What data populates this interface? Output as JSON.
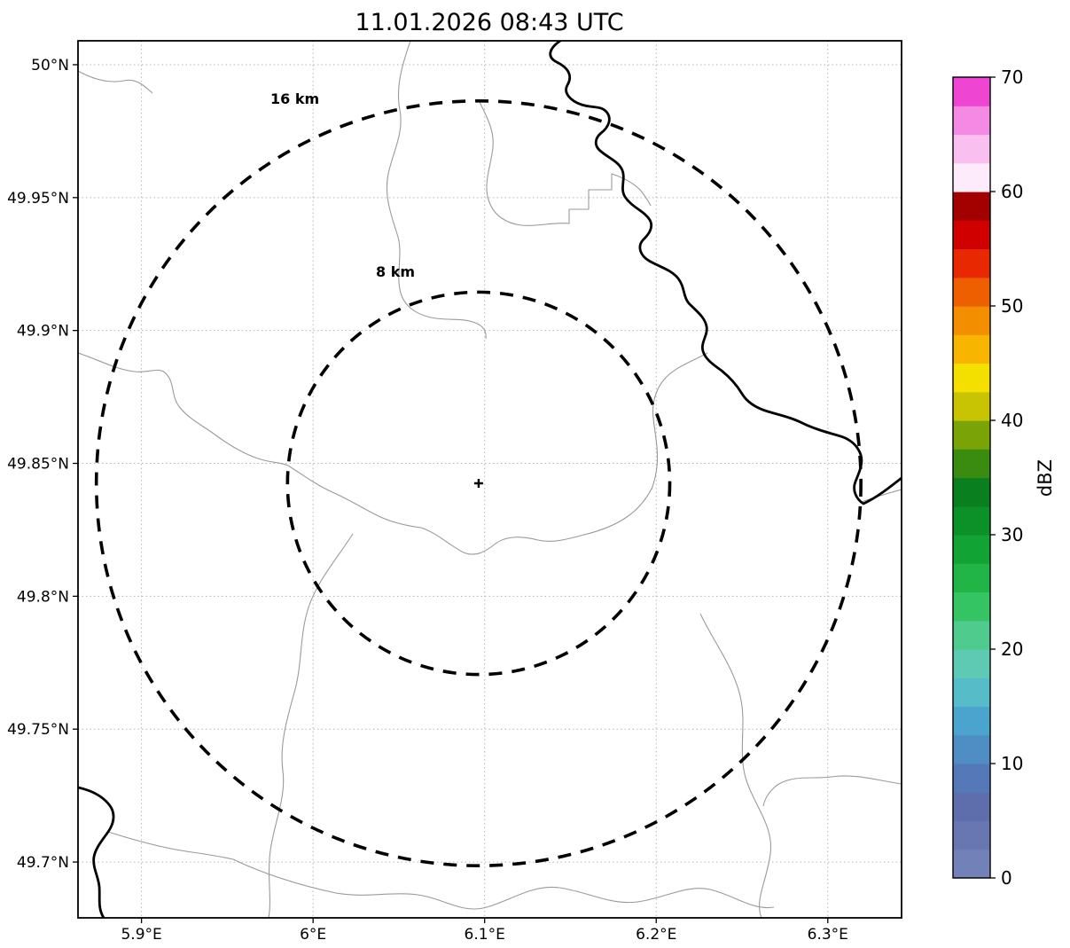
{
  "chart_data": {
    "type": "map",
    "subtype": "weather-radar-range-map",
    "title": "11.01.2026 08:43 UTC",
    "x_axis": {
      "tick_labels": [
        "5.9°E",
        "6°E",
        "6.1°E",
        "6.2°E",
        "6.3°E"
      ],
      "tick_values": [
        5.9,
        6.0,
        6.1,
        6.2,
        6.3
      ],
      "range": [
        5.863,
        6.343
      ],
      "unit": "degrees east",
      "grid": true,
      "grid_style": "dotted"
    },
    "y_axis": {
      "tick_labels": [
        "50°N",
        "49.95°N",
        "49.9°N",
        "49.85°N",
        "49.8°N",
        "49.75°N",
        "49.7°N"
      ],
      "tick_values": [
        50.0,
        49.95,
        49.9,
        49.85,
        49.8,
        49.75,
        49.7
      ],
      "range": [
        49.679,
        50.009
      ],
      "unit": "degrees north",
      "grid": true,
      "grid_style": "dotted"
    },
    "radar_site": {
      "lon": 6.0965,
      "lat": 49.8425,
      "marker": "+"
    },
    "range_rings": [
      {
        "label": "16 km",
        "radius_km": 16
      },
      {
        "label": "8 km",
        "radius_km": 8
      }
    ],
    "map_layers": [
      "thin gray administrative boundary / river lines",
      "thick black border river line (north-east and south-west)"
    ],
    "reflectivity_echoes": "none visible",
    "colorbar": {
      "label": "dBZ",
      "tick_labels": [
        "0",
        "10",
        "20",
        "30",
        "40",
        "50",
        "60",
        "70"
      ],
      "tick_values": [
        0,
        10,
        20,
        30,
        40,
        50,
        60,
        70
      ],
      "range": [
        0,
        70
      ],
      "orientation": "vertical",
      "n_segments": 28,
      "segment_colors_bottom_to_top": [
        "#7282b8",
        "#6877b2",
        "#5e6dac",
        "#5578b8",
        "#4e8ec4",
        "#4aa4cd",
        "#55bcc8",
        "#5ecab4",
        "#4ecb8d",
        "#35c463",
        "#21b447",
        "#12a335",
        "#0c9128",
        "#0a7f1f",
        "#3a8c10",
        "#7aa308",
        "#c8c404",
        "#f4e000",
        "#f7b500",
        "#f28e00",
        "#ee5f00",
        "#e82800",
        "#d10000",
        "#a30000",
        "#fdeafb",
        "#f9c0ef",
        "#f48ae3",
        "#ee46d3"
      ]
    }
  }
}
